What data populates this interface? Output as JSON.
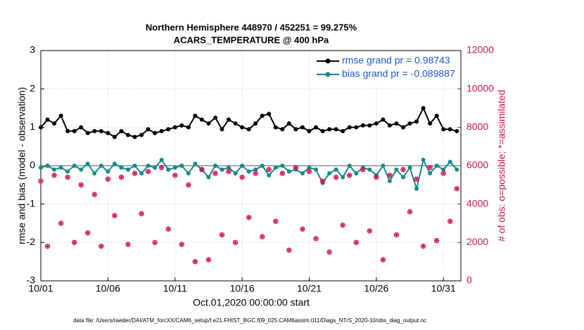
{
  "chart_data": {
    "type": "line",
    "title": "Northern Hemisphere 448970 / 452251 = 99.275%",
    "subtitle": "ACARS_TEMPERATURE @ 400 hPa",
    "y_label": "rmse and bias (model - observation)",
    "y2_label": "# of obs: o=possible; *=assimilated",
    "x_label": "Oct.01,2020 00:00:00 start",
    "footnote": "data file: /Users/raeder/DAI/ATM_forcXX/CAM6_setup/f.e21.FHIST_BGC.f09_025.CAM6assim.011/Diags_NTrS_2020-10/obs_diag_output.nc",
    "x": [
      0,
      0.5,
      1,
      1.5,
      2,
      2.5,
      3,
      3.5,
      4,
      4.5,
      5,
      5.5,
      6,
      6.5,
      7,
      7.5,
      8,
      8.5,
      9,
      9.5,
      10,
      10.5,
      11,
      11.5,
      12,
      12.5,
      13,
      13.5,
      14,
      14.5,
      15,
      15.5,
      16,
      16.5,
      17,
      17.5,
      18,
      18.5,
      19,
      19.5,
      20,
      20.5,
      21,
      21.5,
      22,
      22.5,
      23,
      23.5,
      24,
      24.5,
      25,
      25.5,
      26,
      26.5,
      27,
      27.5,
      28,
      28.5,
      29,
      29.5,
      30,
      30.5,
      31
    ],
    "series": [
      {
        "name": "rmse grand pr = 0.98743",
        "color": "#000000",
        "values": [
          1.0,
          1.2,
          1.1,
          1.3,
          0.9,
          0.9,
          1.0,
          0.85,
          0.9,
          0.9,
          0.85,
          0.75,
          0.9,
          0.8,
          0.75,
          0.8,
          0.95,
          0.85,
          0.9,
          0.95,
          1.0,
          1.05,
          1.0,
          1.3,
          1.2,
          1.1,
          1.25,
          0.95,
          1.2,
          1.1,
          1.0,
          0.95,
          1.1,
          1.3,
          1.35,
          1.0,
          0.95,
          1.1,
          0.95,
          1.0,
          0.9,
          1.0,
          0.9,
          0.95,
          0.95,
          0.9,
          1.0,
          1.0,
          1.05,
          1.05,
          1.1,
          1.2,
          1.05,
          1.1,
          1.0,
          1.1,
          1.15,
          1.5,
          1.1,
          1.3,
          0.95,
          0.95,
          0.9
        ]
      },
      {
        "name": "bias grand pr = -0.089887",
        "color": "#138a8a",
        "values": [
          -0.05,
          0.0,
          -0.1,
          -0.05,
          -0.15,
          0.0,
          -0.1,
          0.05,
          -0.2,
          0.0,
          -0.15,
          0.05,
          -0.05,
          -0.1,
          0.0,
          -0.2,
          0.0,
          -0.05,
          0.15,
          -0.1,
          -0.05,
          0.0,
          -0.2,
          0.05,
          -0.1,
          -0.3,
          0.0,
          -0.1,
          -0.05,
          -0.2,
          0.0,
          -0.15,
          -0.1,
          0.0,
          -0.25,
          -0.05,
          0.0,
          -0.15,
          -0.1,
          -0.2,
          -0.05,
          -0.1,
          -0.45,
          -0.2,
          -0.1,
          -0.3,
          0.0,
          -0.2,
          -0.05,
          -0.1,
          -0.25,
          0.0,
          -0.4,
          -0.1,
          -0.3,
          -0.05,
          -0.6,
          0.15,
          -0.2,
          0.0,
          -0.1,
          0.1,
          -0.1
        ]
      },
      {
        "axis": "y2",
        "color": "#d0105a",
        "values": [
          5200,
          1800,
          5500,
          3000,
          5400,
          2000,
          5000,
          2500,
          4500,
          1800,
          5300,
          3400,
          5400,
          1900,
          5600,
          3500,
          5700,
          2000,
          5900,
          2700,
          5500,
          1900,
          5000,
          1000,
          5800,
          1100,
          5600,
          2400,
          5700,
          2000,
          5400,
          3300,
          5600,
          2300,
          5800,
          3100,
          5600,
          1600,
          5900,
          2700,
          5700,
          2200,
          5200,
          1500,
          5400,
          2900,
          5500,
          2000,
          5800,
          2600,
          5400,
          1100,
          5500,
          2400,
          5800,
          3600,
          5300,
          1800,
          5900,
          2100,
          5600,
          3100,
          4800
        ]
      }
    ],
    "xlim": [
      0,
      31.3
    ],
    "xticks": [
      {
        "value": 0,
        "label": "10/01"
      },
      {
        "value": 5,
        "label": "10/06"
      },
      {
        "value": 10,
        "label": "10/11"
      },
      {
        "value": 15,
        "label": "10/16"
      },
      {
        "value": 20,
        "label": "10/21"
      },
      {
        "value": 25,
        "label": "10/26"
      },
      {
        "value": 30,
        "label": "10/31"
      }
    ],
    "ylim": [
      -3,
      3
    ],
    "yticks": [
      -3,
      -2,
      -1,
      0,
      1,
      2,
      3
    ],
    "y2lim": [
      0,
      12000
    ],
    "y2ticks": [
      0,
      2000,
      4000,
      6000,
      8000,
      10000,
      12000
    ],
    "grid": true,
    "legend": "upper right"
  }
}
